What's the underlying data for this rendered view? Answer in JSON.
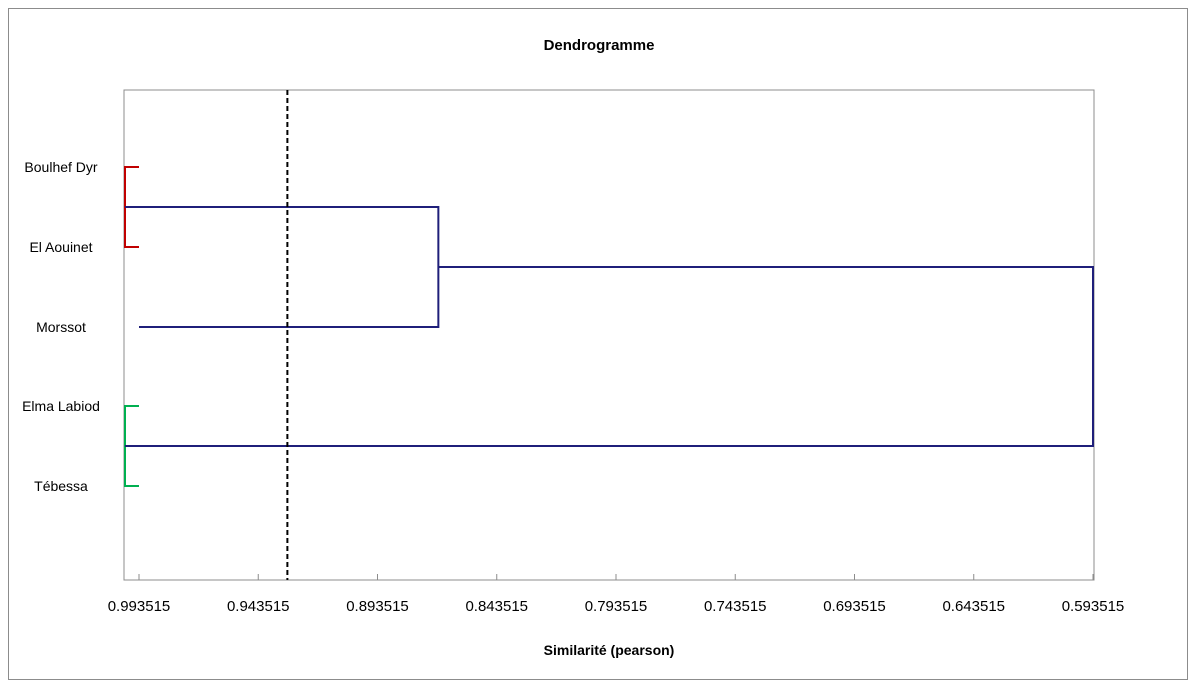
{
  "chart_data": {
    "type": "dendrogram",
    "title": "Dendrogramme",
    "xlabel": "Similarité (pearson)",
    "ylabel": "",
    "xlim": [
      0.993515,
      0.593515
    ],
    "x_reversed": true,
    "xticks": [
      0.993515,
      0.943515,
      0.893515,
      0.843515,
      0.793515,
      0.743515,
      0.693515,
      0.643515,
      0.593515
    ],
    "xtick_labels": [
      "0.993515",
      "0.943515",
      "0.893515",
      "0.843515",
      "0.793515",
      "0.743515",
      "0.693515",
      "0.643515",
      "0.593515"
    ],
    "leaves": [
      "Boulhef Dyr",
      "El Aouinet",
      "Morssot",
      "Elma Labiod",
      "Tébessa"
    ],
    "merges": [
      {
        "left": "Boulhef Dyr",
        "right": "El Aouinet",
        "similarity": 0.9994,
        "color": "#c00000"
      },
      {
        "left": "Elma Labiod",
        "right": "Tébessa",
        "similarity": 0.9994,
        "color": "#00b050"
      },
      {
        "left": "Boulhef Dyr + El Aouinet",
        "right": "Morssot",
        "similarity": 0.868,
        "color": "#1f1f7a"
      },
      {
        "left": "Boulhef Dyr + El Aouinet + Morssot",
        "right": "Elma Labiod + Tébessa",
        "similarity": 0.593515,
        "color": "#1f1f7a"
      }
    ],
    "cut_line": {
      "similarity": 0.9313,
      "style": "dashed",
      "color": "#000000"
    },
    "grid": false,
    "legend": "none"
  }
}
